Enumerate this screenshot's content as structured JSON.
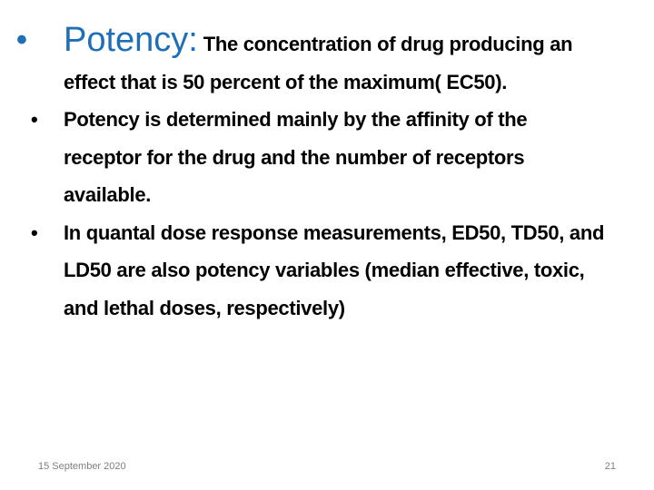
{
  "slide": {
    "bullets": [
      {
        "heading": "Potency:",
        "text": "The concentration of drug producing an effect that is 50 percent of the maximum( EC50)."
      },
      {
        "text": "Potency is determined mainly by the affinity of the receptor for the drug and the number of receptors available."
      },
      {
        "text": "In quantal dose response measurements, ED50, TD50, and LD50 are also potency variables (median effective, toxic, and lethal doses, respectively)"
      }
    ],
    "footer": {
      "date": "15 September 2020",
      "page": 21
    }
  }
}
